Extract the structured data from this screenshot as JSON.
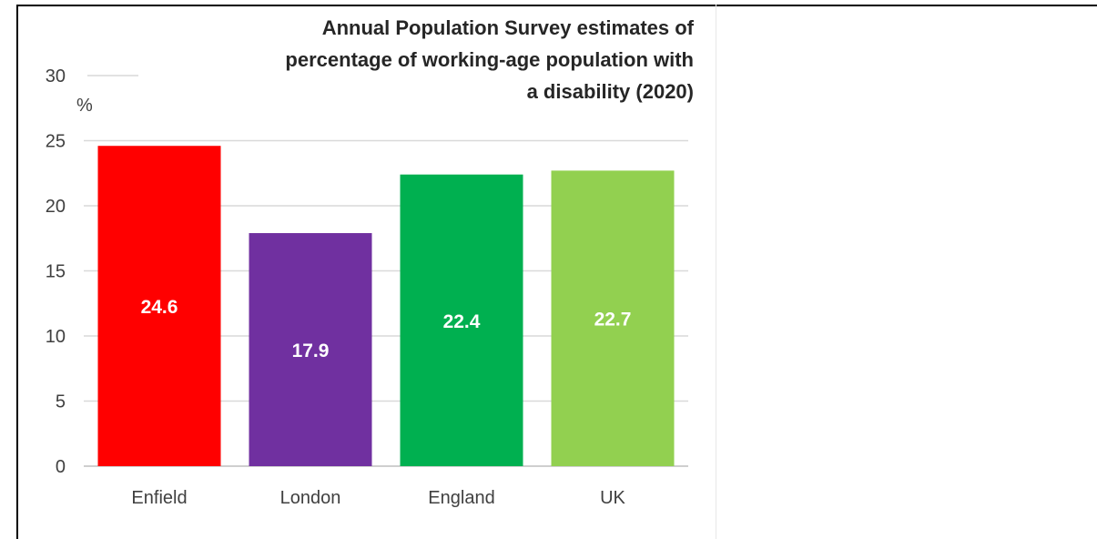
{
  "chart_data": {
    "type": "bar",
    "title_lines": [
      "Annual Population Survey estimates of",
      "percentage of working-age population with",
      "a disability (2020)"
    ],
    "ylabel": "%",
    "xlabel": "",
    "ylim": [
      0,
      30
    ],
    "yticks": [
      0,
      5,
      10,
      15,
      20,
      25,
      30
    ],
    "grid": true,
    "categories": [
      "Enfield",
      "London",
      "England",
      "UK"
    ],
    "values": [
      24.6,
      17.9,
      22.4,
      22.7
    ],
    "data_labels": [
      "24.6",
      "17.9",
      "22.4",
      "22.7"
    ],
    "colors": [
      "#ff0000",
      "#7030a0",
      "#00b050",
      "#92d050"
    ]
  }
}
